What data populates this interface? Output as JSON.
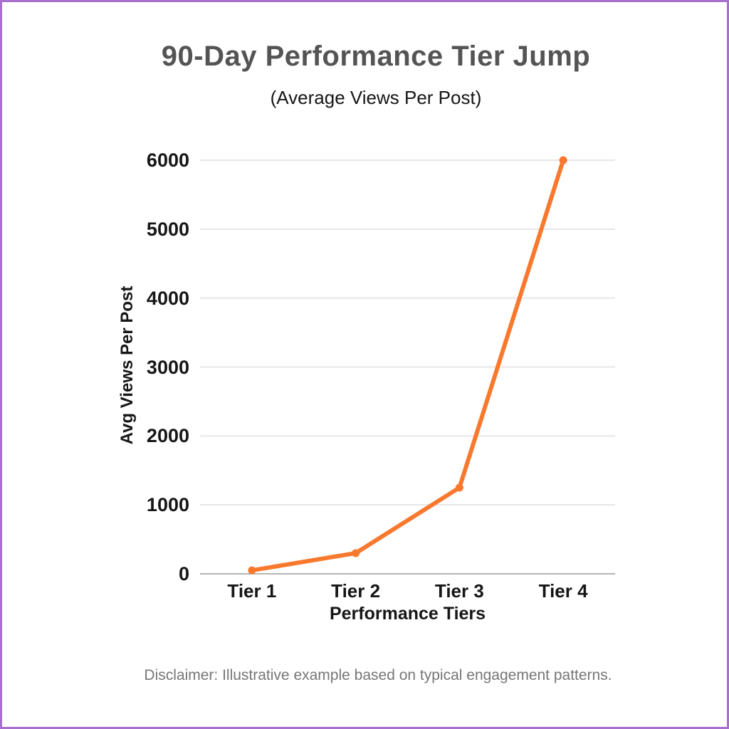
{
  "page": {
    "background": "#ffffff",
    "border_color": "#a96fce"
  },
  "chart_data": {
    "type": "line",
    "title": "90-Day Performance Tier Jump",
    "subtitle": "(Average Views Per Post)",
    "xlabel": "Performance Tiers",
    "ylabel": "Avg Views Per Post",
    "categories": [
      "Tier 1",
      "Tier 2",
      "Tier 3",
      "Tier 4"
    ],
    "values": [
      50,
      300,
      1250,
      6000
    ],
    "ylim": [
      0,
      6000
    ],
    "yticks": [
      0,
      1000,
      2000,
      3000,
      4000,
      5000,
      6000
    ],
    "grid": true,
    "legend": false,
    "marker": "circle",
    "line_color": "#f8792e",
    "disclaimer": "Disclaimer: Illustrative example based on typical engagement patterns."
  },
  "colors": {
    "title": "#545454",
    "text": "#161616",
    "grid": "#e6e6e6",
    "axis": "#b5b5b5",
    "disclaimer": "#767676"
  }
}
